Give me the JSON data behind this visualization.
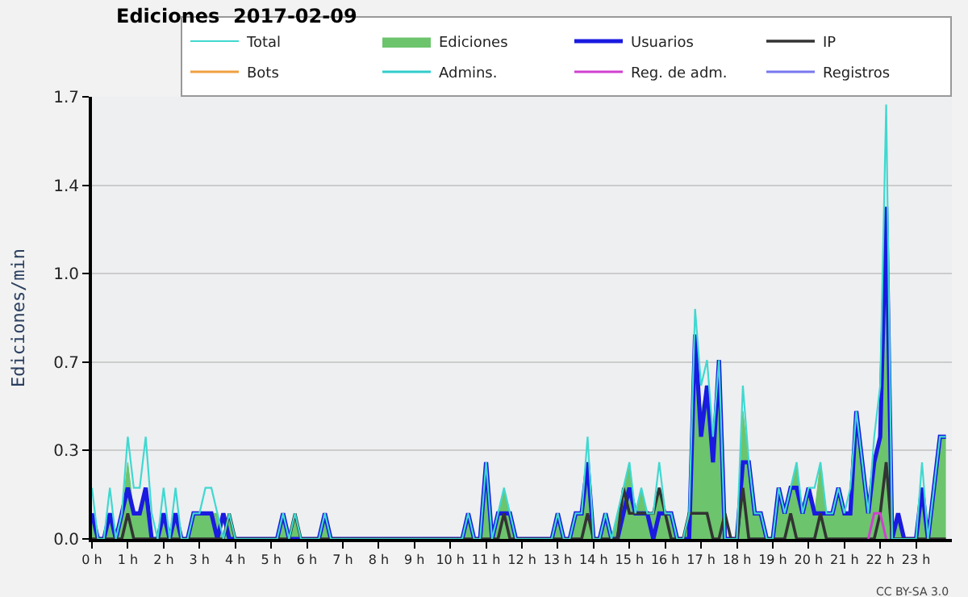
{
  "chart_data": {
    "type": "line",
    "title": "Ediciones  2017-02-09",
    "ylabel": "Ediciones/min",
    "x": [
      0,
      0.167,
      0.333,
      0.5,
      0.667,
      0.833,
      1,
      1.167,
      1.333,
      1.5,
      1.667,
      1.833,
      2,
      2.167,
      2.333,
      2.5,
      2.667,
      2.833,
      3,
      3.167,
      3.333,
      3.5,
      3.667,
      3.833,
      4,
      4.167,
      4.333,
      4.5,
      4.667,
      4.833,
      5,
      5.167,
      5.333,
      5.5,
      5.667,
      5.833,
      6,
      6.167,
      6.333,
      6.5,
      6.667,
      6.833,
      7,
      7.167,
      7.333,
      7.5,
      7.667,
      7.833,
      8,
      8.167,
      8.333,
      8.5,
      8.667,
      8.833,
      9,
      9.167,
      9.333,
      9.5,
      9.667,
      9.833,
      10,
      10.167,
      10.333,
      10.5,
      10.667,
      10.833,
      11,
      11.167,
      11.333,
      11.5,
      11.667,
      11.833,
      12,
      12.167,
      12.333,
      12.5,
      12.667,
      12.833,
      13,
      13.167,
      13.333,
      13.5,
      13.667,
      13.833,
      14,
      14.167,
      14.333,
      14.5,
      14.667,
      14.833,
      15,
      15.167,
      15.333,
      15.5,
      15.667,
      15.833,
      16,
      16.167,
      16.333,
      16.5,
      16.667,
      16.833,
      17,
      17.167,
      17.333,
      17.5,
      17.667,
      17.833,
      18,
      18.167,
      18.333,
      18.5,
      18.667,
      18.833,
      19,
      19.167,
      19.333,
      19.5,
      19.667,
      19.833,
      20,
      20.167,
      20.333,
      20.5,
      20.667,
      20.833,
      21,
      21.167,
      21.333,
      21.5,
      21.667,
      21.833,
      22,
      22.167,
      22.333,
      22.5,
      22.667,
      22.833,
      23,
      23.167,
      23.333,
      23.5,
      23.667,
      23.833
    ],
    "series": [
      {
        "name": "Total",
        "color": "#40d8d0",
        "values": [
          0.2,
          0,
          0,
          0.2,
          0,
          0.1,
          0.4,
          0.2,
          0.2,
          0.4,
          0.1,
          0,
          0.2,
          0,
          0.2,
          0,
          0,
          0.1,
          0.1,
          0.2,
          0.2,
          0.1,
          0,
          0.1,
          0,
          0,
          0,
          0,
          0,
          0,
          0,
          0,
          0.1,
          0,
          0.1,
          0,
          0,
          0,
          0,
          0.1,
          0,
          0,
          0,
          0,
          0,
          0,
          0,
          0,
          0,
          0,
          0,
          0,
          0,
          0,
          0,
          0,
          0,
          0,
          0,
          0,
          0,
          0,
          0,
          0.1,
          0,
          0,
          0.3,
          0,
          0.1,
          0.2,
          0.1,
          0,
          0,
          0,
          0,
          0,
          0,
          0,
          0.1,
          0,
          0,
          0.1,
          0.1,
          0.4,
          0,
          0,
          0.1,
          0,
          0.1,
          0.2,
          0.3,
          0.1,
          0.2,
          0.1,
          0.1,
          0.3,
          0.1,
          0.1,
          0,
          0,
          0.1,
          0.9,
          0.6,
          0.7,
          0.4,
          0.7,
          0,
          0,
          0,
          0.6,
          0.3,
          0.1,
          0.1,
          0,
          0,
          0.2,
          0.1,
          0.2,
          0.3,
          0.1,
          0.2,
          0.2,
          0.3,
          0.1,
          0.1,
          0.2,
          0.1,
          0.2,
          0.5,
          0.3,
          0.1,
          0.4,
          0.6,
          1.7,
          0,
          0,
          0,
          0,
          0,
          0.3,
          0,
          0.2,
          0.4,
          0.4
        ]
      },
      {
        "name": "Ediciones",
        "type": "area",
        "color": "#6cc46c",
        "values": [
          0.1,
          0,
          0,
          0.1,
          0,
          0.1,
          0.3,
          0.1,
          0.1,
          0.2,
          0,
          0,
          0.1,
          0,
          0.1,
          0,
          0,
          0.1,
          0.1,
          0.1,
          0.1,
          0.1,
          0,
          0.1,
          0,
          0,
          0,
          0,
          0,
          0,
          0,
          0,
          0.1,
          0,
          0.1,
          0,
          0,
          0,
          0,
          0.1,
          0,
          0,
          0,
          0,
          0,
          0,
          0,
          0,
          0,
          0,
          0,
          0,
          0,
          0,
          0,
          0,
          0,
          0,
          0,
          0,
          0,
          0,
          0,
          0.1,
          0,
          0,
          0.3,
          0,
          0.1,
          0.2,
          0.1,
          0,
          0,
          0,
          0,
          0,
          0,
          0,
          0.1,
          0,
          0,
          0.1,
          0.1,
          0.3,
          0,
          0,
          0.1,
          0,
          0.1,
          0.2,
          0.3,
          0.1,
          0.2,
          0.1,
          0.1,
          0.2,
          0.1,
          0.1,
          0,
          0,
          0.1,
          0.8,
          0.5,
          0.6,
          0.4,
          0.7,
          0,
          0,
          0,
          0.5,
          0.3,
          0.1,
          0.1,
          0,
          0,
          0.2,
          0.1,
          0.2,
          0.3,
          0.1,
          0.2,
          0.1,
          0.3,
          0.1,
          0.1,
          0.2,
          0.1,
          0.1,
          0.5,
          0.3,
          0.1,
          0.3,
          0.4,
          1.2,
          0,
          0.1,
          0,
          0,
          0,
          0.2,
          0,
          0.2,
          0.4,
          0.4
        ]
      },
      {
        "name": "Usuarios",
        "color": "#1a1ae0",
        "values": [
          0.1,
          0,
          0,
          0.1,
          0,
          0.1,
          0.2,
          0.1,
          0.1,
          0.2,
          0,
          0,
          0.1,
          0,
          0.1,
          0,
          0,
          0.1,
          0.1,
          0.1,
          0.1,
          0,
          0.1,
          0,
          0,
          0,
          0,
          0,
          0,
          0,
          0,
          0,
          0.1,
          0,
          0,
          0,
          0,
          0,
          0,
          0.1,
          0,
          0,
          0,
          0,
          0,
          0,
          0,
          0,
          0,
          0,
          0,
          0,
          0,
          0,
          0,
          0,
          0,
          0,
          0,
          0,
          0,
          0,
          0,
          0.1,
          0,
          0,
          0.3,
          0,
          0.1,
          0.1,
          0.1,
          0,
          0,
          0,
          0,
          0,
          0,
          0,
          0.1,
          0,
          0,
          0.1,
          0.1,
          0.3,
          0,
          0,
          0.1,
          0,
          0,
          0.1,
          0.2,
          0.1,
          0.1,
          0.1,
          0,
          0.1,
          0.1,
          0.1,
          0,
          0,
          0,
          0.8,
          0.4,
          0.6,
          0.3,
          0.7,
          0,
          0,
          0,
          0.3,
          0.3,
          0.1,
          0.1,
          0,
          0,
          0.2,
          0.1,
          0.2,
          0.2,
          0.1,
          0.2,
          0.1,
          0.1,
          0.1,
          0.1,
          0.2,
          0.1,
          0.1,
          0.5,
          0.3,
          0.1,
          0.3,
          0.4,
          1.3,
          0,
          0.1,
          0,
          0,
          0,
          0.2,
          0,
          0.2,
          0.4,
          0.4
        ]
      },
      {
        "name": "IP",
        "color": "#333333",
        "values": [
          0,
          0,
          0,
          0,
          0,
          0,
          0.1,
          0,
          0,
          0,
          0,
          0,
          0,
          0,
          0,
          0,
          0,
          0,
          0,
          0,
          0,
          0,
          0,
          0.1,
          0,
          0,
          0,
          0,
          0,
          0,
          0,
          0,
          0,
          0,
          0.1,
          0,
          0,
          0,
          0,
          0,
          0,
          0,
          0,
          0,
          0,
          0,
          0,
          0,
          0,
          0,
          0,
          0,
          0,
          0,
          0,
          0,
          0,
          0,
          0,
          0,
          0,
          0,
          0,
          0,
          0,
          0,
          0,
          0,
          0,
          0.1,
          0,
          0,
          0,
          0,
          0,
          0,
          0,
          0,
          0,
          0,
          0,
          0,
          0,
          0.1,
          0,
          0,
          0,
          0,
          0,
          0.2,
          0.1,
          0.1,
          0.1,
          0.1,
          0.1,
          0.2,
          0.1,
          0,
          0,
          0,
          0.1,
          0.1,
          0.1,
          0.1,
          0,
          0,
          0.1,
          0,
          0,
          0.2,
          0,
          0,
          0,
          0,
          0,
          0,
          0,
          0.1,
          0,
          0,
          0,
          0,
          0.1,
          0,
          0,
          0,
          0,
          0,
          0,
          0,
          0,
          0,
          0.1,
          0.3,
          0,
          0,
          0,
          0,
          0,
          0,
          0,
          0,
          0,
          0
        ]
      },
      {
        "name": "Bots",
        "color": "#f0a040",
        "values": [
          null,
          null,
          null,
          null,
          null,
          null,
          null,
          null,
          null,
          null,
          null,
          null,
          null,
          null,
          null,
          null,
          null,
          null,
          null,
          null,
          null,
          null,
          null,
          null,
          null,
          null,
          null,
          null,
          null,
          null,
          null,
          null,
          null,
          null,
          null,
          null,
          null,
          null,
          null,
          null,
          null,
          null,
          null,
          null,
          null,
          null,
          null,
          null,
          null,
          null,
          null,
          null,
          null,
          null,
          null,
          null,
          null,
          null,
          null,
          null,
          null,
          null,
          null,
          null,
          null,
          null,
          null,
          null,
          null,
          null,
          null,
          null,
          null,
          null,
          null,
          null,
          null,
          null,
          null,
          null,
          null,
          null,
          null,
          null,
          null,
          null,
          null,
          null,
          null,
          null,
          null,
          null,
          null,
          null,
          null,
          null,
          null,
          null,
          null,
          null,
          null,
          null,
          null,
          null,
          null,
          null,
          null,
          null,
          null,
          null,
          null,
          null,
          null,
          null,
          null,
          null,
          null,
          null,
          null,
          null,
          null,
          null,
          null,
          null,
          null,
          null,
          null,
          null,
          null,
          null,
          null,
          null,
          null,
          null,
          null,
          null,
          null,
          null,
          null,
          null,
          null,
          null,
          null,
          null
        ]
      },
      {
        "name": "Admins.",
        "color": "#33cccc",
        "values": [
          null,
          null,
          null,
          null,
          null,
          null,
          null,
          null,
          null,
          null,
          null,
          null,
          null,
          null,
          null,
          null,
          null,
          null,
          null,
          null,
          null,
          null,
          null,
          null,
          null,
          null,
          null,
          null,
          null,
          null,
          null,
          null,
          null,
          null,
          null,
          null,
          null,
          null,
          null,
          null,
          null,
          null,
          null,
          null,
          null,
          null,
          null,
          null,
          null,
          null,
          null,
          null,
          null,
          null,
          null,
          null,
          null,
          null,
          null,
          null,
          null,
          null,
          null,
          null,
          null,
          null,
          null,
          null,
          null,
          null,
          null,
          null,
          null,
          null,
          null,
          null,
          null,
          null,
          null,
          null,
          null,
          null,
          null,
          null,
          null,
          null,
          null,
          null,
          null,
          null,
          null,
          null,
          null,
          null,
          null,
          null,
          null,
          null,
          null,
          null,
          null,
          null,
          null,
          null,
          null,
          null,
          null,
          null,
          null,
          null,
          null,
          null,
          null,
          null,
          null,
          null,
          null,
          null,
          null,
          null,
          null,
          null,
          null,
          null,
          null,
          null,
          null,
          null,
          null,
          null,
          null,
          null,
          null,
          null,
          null,
          null,
          null,
          null,
          null,
          null,
          null,
          null,
          null,
          null
        ]
      },
      {
        "name": "Reg. de adm.",
        "color": "#d040d0",
        "x": [
          21.667,
          21.833,
          22,
          22.167
        ],
        "values": [
          0,
          0.1,
          0.1,
          0
        ]
      },
      {
        "name": "Registros",
        "color": "#7878f0",
        "values": [
          null,
          null,
          null,
          null,
          null,
          null,
          null,
          null,
          null,
          null,
          null,
          null,
          null,
          null,
          null,
          null,
          null,
          null,
          null,
          null,
          null,
          null,
          null,
          null,
          null,
          null,
          null,
          null,
          null,
          null,
          null,
          null,
          null,
          null,
          null,
          null,
          null,
          null,
          null,
          null,
          null,
          null,
          null,
          null,
          null,
          null,
          null,
          null,
          null,
          null,
          null,
          null,
          null,
          null,
          null,
          null,
          null,
          null,
          null,
          null,
          null,
          null,
          null,
          null,
          null,
          null,
          null,
          null,
          null,
          null,
          null,
          null,
          null,
          null,
          null,
          null,
          null,
          null,
          null,
          null,
          null,
          null,
          null,
          null,
          null,
          null,
          null,
          null,
          null,
          null,
          null,
          null,
          null,
          null,
          null,
          null,
          null,
          null,
          null,
          null,
          null,
          null,
          null,
          null,
          null,
          null,
          null,
          null,
          null,
          null,
          null,
          null,
          null,
          null,
          null,
          null,
          null,
          null,
          null,
          null,
          null,
          null,
          null,
          null,
          null,
          null,
          null,
          null,
          null,
          null,
          null,
          null,
          null,
          null,
          null,
          null,
          null,
          null,
          null,
          null,
          null,
          null,
          null,
          null
        ]
      }
    ],
    "xlim": [
      0,
      24
    ],
    "xticks": [
      {
        "value": 0,
        "label": "0 h"
      },
      {
        "value": 1,
        "label": "1 h"
      },
      {
        "value": 2,
        "label": "2 h"
      },
      {
        "value": 3,
        "label": "3 h"
      },
      {
        "value": 4,
        "label": "4 h"
      },
      {
        "value": 5,
        "label": "5 h"
      },
      {
        "value": 6,
        "label": "6 h"
      },
      {
        "value": 7,
        "label": "7 h"
      },
      {
        "value": 8,
        "label": "8 h"
      },
      {
        "value": 9,
        "label": "9 h"
      },
      {
        "value": 10,
        "label": "10 h"
      },
      {
        "value": 11,
        "label": "11 h"
      },
      {
        "value": 12,
        "label": "12 h"
      },
      {
        "value": 13,
        "label": "13 h"
      },
      {
        "value": 14,
        "label": "14 h"
      },
      {
        "value": 15,
        "label": "15 h"
      },
      {
        "value": 16,
        "label": "16 h"
      },
      {
        "value": 17,
        "label": "17 h"
      },
      {
        "value": 18,
        "label": "18 h"
      },
      {
        "value": 19,
        "label": "19 h"
      },
      {
        "value": 20,
        "label": "20 h"
      },
      {
        "value": 21,
        "label": "21 h"
      },
      {
        "value": 22,
        "label": "22 h"
      },
      {
        "value": 23,
        "label": "23 h"
      }
    ],
    "ylim": [
      0,
      1.73
    ],
    "yticks": [
      {
        "value": 0,
        "label": "0.0"
      },
      {
        "value": 0.346,
        "label": "0.3"
      },
      {
        "value": 0.692,
        "label": "0.7"
      },
      {
        "value": 1.038,
        "label": "1.0"
      },
      {
        "value": 1.384,
        "label": "1.4"
      },
      {
        "value": 1.73,
        "label": "1.7"
      }
    ],
    "grid": "y",
    "legend": "top right",
    "annotations": [
      "CC BY-SA 3.0"
    ]
  }
}
